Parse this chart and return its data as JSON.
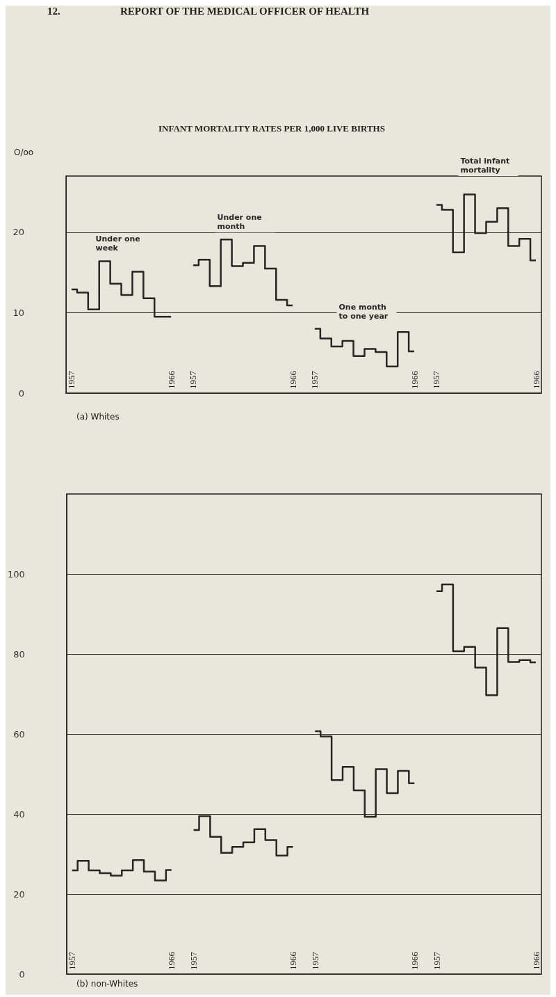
{
  "chart_data": [
    {
      "type": "step",
      "title": "INFANT MORTALITY RATES PER 1,000 LIVE BIRTHS",
      "subtitle": "(a) Whites",
      "ylabel": "O/oo",
      "annotations": [
        "12.",
        "REPORT OF THE MEDICAL OFFICER OF HEALTH"
      ],
      "categories": [
        "1957",
        null,
        null,
        null,
        null,
        null,
        null,
        null,
        null,
        "1966",
        null,
        "1957",
        null,
        null,
        null,
        null,
        null,
        null,
        null,
        null,
        "1966",
        null,
        "1957",
        null,
        null,
        null,
        null,
        null,
        null,
        null,
        null,
        "1966",
        null,
        "1957",
        null,
        null,
        null,
        null,
        null,
        null,
        null,
        null,
        "1966"
      ],
      "series": [
        {
          "name": "Under one week",
          "color": "#262626",
          "values": [
            12.9,
            12.5,
            10.4,
            16.4,
            13.6,
            12.2,
            15.1,
            11.8,
            9.5,
            9.5,
            null,
            null,
            null,
            null,
            null,
            null,
            null,
            null,
            null,
            null,
            null,
            null,
            null,
            null,
            null,
            null,
            null,
            null,
            null,
            null,
            null,
            null,
            null,
            null,
            null,
            null,
            null,
            null,
            null,
            null,
            null,
            null,
            null
          ]
        },
        {
          "name": "Under one month",
          "color": "#262626",
          "values": [
            null,
            null,
            null,
            null,
            null,
            null,
            null,
            null,
            null,
            null,
            null,
            15.9,
            16.6,
            13.3,
            19.1,
            15.8,
            16.2,
            18.3,
            15.5,
            11.6,
            10.9,
            null,
            null,
            null,
            null,
            null,
            null,
            null,
            null,
            null,
            null,
            null,
            null,
            null,
            null,
            null,
            null,
            null,
            null,
            null,
            null,
            null,
            null
          ]
        },
        {
          "name": "One month to one year",
          "color": "#262626",
          "values": [
            null,
            null,
            null,
            null,
            null,
            null,
            null,
            null,
            null,
            null,
            null,
            null,
            null,
            null,
            null,
            null,
            null,
            null,
            null,
            null,
            null,
            null,
            8.0,
            6.8,
            5.8,
            6.5,
            4.6,
            5.5,
            5.1,
            3.3,
            7.6,
            5.2,
            null,
            null,
            null,
            null,
            null,
            null,
            null,
            null,
            null,
            null,
            null
          ]
        },
        {
          "name": "Total infant mortality",
          "color": "#262626",
          "values": [
            null,
            null,
            null,
            null,
            null,
            null,
            null,
            null,
            null,
            null,
            null,
            null,
            null,
            null,
            null,
            null,
            null,
            null,
            null,
            null,
            null,
            null,
            null,
            null,
            null,
            null,
            null,
            null,
            null,
            null,
            null,
            null,
            null,
            23.4,
            22.8,
            17.5,
            24.7,
            19.9,
            21.3,
            23.0,
            18.3,
            19.2,
            16.5
          ]
        }
      ],
      "ylim": [
        0,
        27
      ],
      "yticks": [
        0,
        10,
        20
      ],
      "grid": "y"
    },
    {
      "type": "step",
      "subtitle": "(b) non-Whites",
      "categories": [
        "1957",
        null,
        null,
        null,
        null,
        null,
        null,
        null,
        null,
        "1966",
        null,
        "1957",
        null,
        null,
        null,
        null,
        null,
        null,
        null,
        null,
        "1966",
        null,
        "1957",
        null,
        null,
        null,
        null,
        null,
        null,
        null,
        null,
        "1966",
        null,
        "1957",
        null,
        null,
        null,
        null,
        null,
        null,
        null,
        null,
        "1966"
      ],
      "series": [
        {
          "color": "#262626",
          "values": [
            25.9,
            28.3,
            25.9,
            25.2,
            24.6,
            25.9,
            28.5,
            25.6,
            23.4,
            26.0,
            null,
            null,
            null,
            null,
            null,
            null,
            null,
            null,
            null,
            null,
            null,
            null,
            null,
            null,
            null,
            null,
            null,
            null,
            null,
            null,
            null,
            null,
            null,
            null,
            null,
            null,
            null,
            null,
            null,
            null,
            null,
            null,
            null
          ]
        },
        {
          "color": "#262626",
          "values": [
            null,
            null,
            null,
            null,
            null,
            null,
            null,
            null,
            null,
            null,
            null,
            36.0,
            39.5,
            34.3,
            30.3,
            31.8,
            32.9,
            36.2,
            33.5,
            29.6,
            31.8,
            null,
            null,
            null,
            null,
            null,
            null,
            null,
            null,
            null,
            null,
            null,
            null,
            null,
            null,
            null,
            null,
            null,
            null,
            null,
            null,
            null,
            null
          ]
        },
        {
          "color": "#262626",
          "values": [
            null,
            null,
            null,
            null,
            null,
            null,
            null,
            null,
            null,
            null,
            null,
            null,
            null,
            null,
            null,
            null,
            null,
            null,
            null,
            null,
            null,
            null,
            60.7,
            59.4,
            48.5,
            51.8,
            45.9,
            39.3,
            51.2,
            45.2,
            50.8,
            47.7,
            null,
            null,
            null,
            null,
            null,
            null,
            null,
            null,
            null,
            null,
            null
          ]
        },
        {
          "color": "#262626",
          "values": [
            null,
            null,
            null,
            null,
            null,
            null,
            null,
            null,
            null,
            null,
            null,
            null,
            null,
            null,
            null,
            null,
            null,
            null,
            null,
            null,
            null,
            null,
            null,
            null,
            null,
            null,
            null,
            null,
            null,
            null,
            null,
            null,
            null,
            95.7,
            97.4,
            80.7,
            81.8,
            76.6,
            69.7,
            86.5,
            78.0,
            78.5,
            77.9
          ]
        }
      ],
      "ylim": [
        0,
        120
      ],
      "yticks": [
        0,
        20,
        40,
        60,
        80,
        100
      ],
      "grid": "y"
    }
  ]
}
